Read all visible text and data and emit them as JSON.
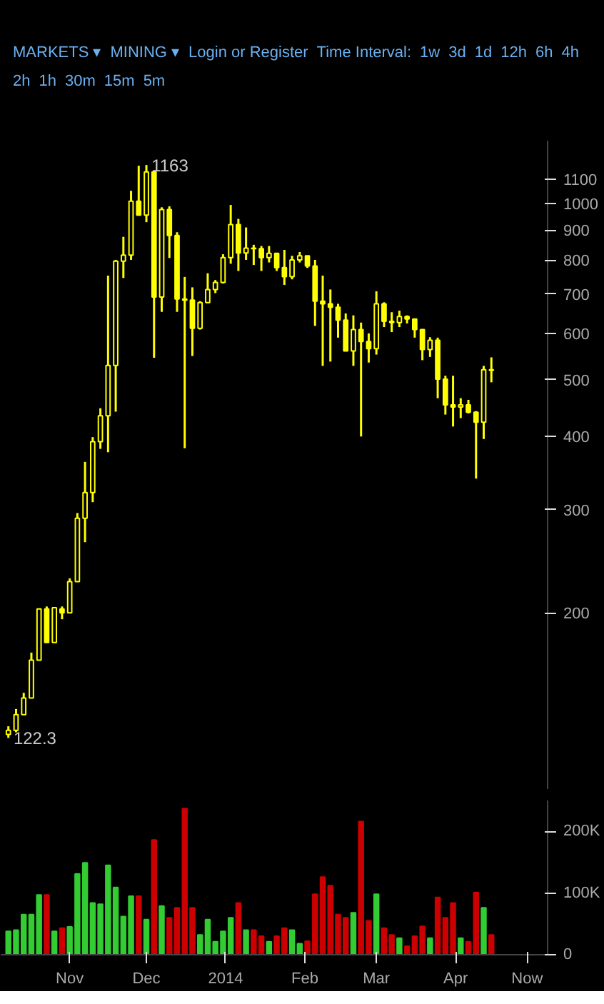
{
  "chart_data": [
    {
      "type": "candlestick",
      "log": true,
      "color": "#ffff00",
      "tick_labels": "y",
      "x": [
        "2013-10-08",
        "2013-10-11",
        "2013-10-14",
        "2013-10-17",
        "2013-10-20",
        "2013-10-23",
        "2013-10-26",
        "2013-10-29",
        "2013-11-01",
        "2013-11-04",
        "2013-11-07",
        "2013-11-10",
        "2013-11-13",
        "2013-11-16",
        "2013-11-19",
        "2013-11-22",
        "2013-11-25",
        "2013-11-28",
        "2013-12-01",
        "2013-12-04",
        "2013-12-07",
        "2013-12-10",
        "2013-12-13",
        "2013-12-16",
        "2013-12-19",
        "2013-12-22",
        "2013-12-25",
        "2013-12-28",
        "2013-12-31",
        "2014-01-03",
        "2014-01-06",
        "2014-01-09",
        "2014-01-12",
        "2014-01-15",
        "2014-01-18",
        "2014-01-21",
        "2014-01-24",
        "2014-01-27",
        "2014-01-30",
        "2014-02-02",
        "2014-02-05",
        "2014-02-08",
        "2014-02-11",
        "2014-02-14",
        "2014-02-17",
        "2014-02-20",
        "2014-02-23",
        "2014-02-26",
        "2014-03-01",
        "2014-03-04",
        "2014-03-07",
        "2014-03-10",
        "2014-03-13",
        "2014-03-16",
        "2014-03-19",
        "2014-03-22",
        "2014-03-25",
        "2014-03-28",
        "2014-03-31",
        "2014-04-03",
        "2014-04-06",
        "2014-04-09",
        "2014-04-12",
        "2014-04-15"
      ],
      "ohlc": [
        [
          124,
          128,
          122.3,
          126
        ],
        [
          126,
          137,
          125,
          134
        ],
        [
          134,
          146,
          134,
          143
        ],
        [
          143,
          171,
          143,
          166
        ],
        [
          166,
          203,
          166,
          203
        ],
        [
          203,
          205,
          178,
          178
        ],
        [
          178,
          204,
          178,
          204
        ],
        [
          203,
          205,
          195,
          200
        ],
        [
          200,
          229,
          200,
          226
        ],
        [
          226,
          296,
          226,
          290
        ],
        [
          290,
          362,
          264,
          321
        ],
        [
          321,
          399,
          309,
          392
        ],
        [
          392,
          447,
          381,
          434
        ],
        [
          434,
          753,
          376,
          529
        ],
        [
          529,
          801,
          441,
          797
        ],
        [
          797,
          877,
          746,
          816
        ],
        [
          816,
          1051,
          801,
          1009
        ],
        [
          1009,
          1160,
          955,
          955
        ],
        [
          955,
          1163,
          929,
          1132
        ],
        [
          1132,
          1136,
          545,
          692
        ],
        [
          692,
          985,
          653,
          976
        ],
        [
          976,
          989,
          807,
          882
        ],
        [
          882,
          893,
          653,
          687
        ],
        [
          687,
          749,
          382,
          684
        ],
        [
          684,
          719,
          549,
          612
        ],
        [
          612,
          681,
          609,
          677
        ],
        [
          677,
          760,
          677,
          713
        ],
        [
          713,
          740,
          703,
          733
        ],
        [
          733,
          819,
          730,
          808
        ],
        [
          808,
          994,
          789,
          920
        ],
        [
          920,
          941,
          767,
          823
        ],
        [
          823,
          910,
          801,
          839
        ],
        [
          839,
          850,
          785,
          837
        ],
        [
          837,
          846,
          767,
          808
        ],
        [
          808,
          846,
          793,
          822
        ],
        [
          822,
          823,
          767,
          777
        ],
        [
          777,
          833,
          726,
          750
        ],
        [
          750,
          814,
          742,
          801
        ],
        [
          801,
          826,
          793,
          814
        ],
        [
          814,
          814,
          776,
          782
        ],
        [
          782,
          801,
          618,
          681
        ],
        [
          681,
          753,
          528,
          674
        ],
        [
          674,
          713,
          537,
          665
        ],
        [
          665,
          674,
          590,
          632
        ],
        [
          632,
          649,
          560,
          560
        ],
        [
          560,
          644,
          528,
          609
        ],
        [
          609,
          626,
          400,
          581
        ],
        [
          581,
          600,
          535,
          565
        ],
        [
          565,
          708,
          552,
          674
        ],
        [
          674,
          678,
          615,
          629
        ],
        [
          629,
          652,
          603,
          626
        ],
        [
          626,
          656,
          615,
          641
        ],
        [
          641,
          644,
          624,
          635
        ],
        [
          635,
          635,
          590,
          609
        ],
        [
          609,
          609,
          540,
          563
        ],
        [
          563,
          591,
          547,
          584
        ],
        [
          584,
          590,
          465,
          501
        ],
        [
          501,
          508,
          436,
          453
        ],
        [
          453,
          508,
          416,
          449
        ],
        [
          449,
          465,
          430,
          453
        ],
        [
          453,
          462,
          438,
          440
        ],
        [
          440,
          442,
          339,
          423
        ],
        [
          423,
          528,
          396,
          520
        ],
        [
          520,
          546,
          495,
          519
        ]
      ],
      "xlim": [
        "2013-10-05",
        "2014-05-07"
      ],
      "ylim": [
        100,
        1280
      ],
      "yticks": [
        200,
        300,
        400,
        500,
        600,
        700,
        800,
        900,
        1000,
        1100
      ],
      "annotations": [
        "MARKETS ▾",
        "MINING ▾",
        "Login or Register",
        "Time Interval:",
        "1w",
        "3d",
        "1d",
        "12h",
        "6h",
        "4h",
        "2h",
        "1h",
        "30m",
        "15m",
        "5m",
        {
          "text": "1163",
          "x": "2013-12-01",
          "y": 1163
        },
        {
          "text": "122.3",
          "x": "2013-10-08",
          "y": 122.3
        }
      ]
    },
    {
      "type": "bar",
      "x": [
        "2013-10-08",
        "2013-10-11",
        "2013-10-14",
        "2013-10-17",
        "2013-10-20",
        "2013-10-23",
        "2013-10-26",
        "2013-10-29",
        "2013-11-01",
        "2013-11-04",
        "2013-11-07",
        "2013-11-10",
        "2013-11-13",
        "2013-11-16",
        "2013-11-19",
        "2013-11-22",
        "2013-11-25",
        "2013-11-28",
        "2013-12-01",
        "2013-12-04",
        "2013-12-07",
        "2013-12-10",
        "2013-12-13",
        "2013-12-16",
        "2013-12-19",
        "2013-12-22",
        "2013-12-25",
        "2013-12-28",
        "2013-12-31",
        "2014-01-03",
        "2014-01-06",
        "2014-01-09",
        "2014-01-12",
        "2014-01-15",
        "2014-01-18",
        "2014-01-21",
        "2014-01-24",
        "2014-01-27",
        "2014-01-30",
        "2014-02-02",
        "2014-02-05",
        "2014-02-08",
        "2014-02-11",
        "2014-02-14",
        "2014-02-17",
        "2014-02-20",
        "2014-02-23",
        "2014-02-26",
        "2014-03-01",
        "2014-03-04",
        "2014-03-07",
        "2014-03-10",
        "2014-03-13",
        "2014-03-16",
        "2014-03-19",
        "2014-03-22",
        "2014-03-25",
        "2014-03-28",
        "2014-03-31",
        "2014-04-03",
        "2014-04-06",
        "2014-04-09",
        "2014-04-12",
        "2014-04-15"
      ],
      "values": [
        38000,
        40000,
        65000,
        65000,
        97000,
        97000,
        38000,
        43000,
        45000,
        131000,
        149000,
        84000,
        82000,
        145000,
        109000,
        62000,
        95000,
        95000,
        57000,
        186000,
        79000,
        60000,
        76000,
        237000,
        76000,
        32000,
        57000,
        21000,
        38000,
        60000,
        84000,
        40000,
        40000,
        30000,
        21000,
        30000,
        43000,
        40000,
        18000,
        22000,
        98000,
        126000,
        112000,
        65000,
        60000,
        68000,
        216000,
        55000,
        98000,
        43000,
        32000,
        27000,
        14000,
        30000,
        46000,
        27000,
        93000,
        60000,
        84000,
        27000,
        21000,
        101000,
        76000,
        32000
      ],
      "colors": [
        "#33cc33",
        "#33cc33",
        "#33cc33",
        "#33cc33",
        "#33cc33",
        "#cc0000",
        "#33cc33",
        "#cc0000",
        "#33cc33",
        "#33cc33",
        "#33cc33",
        "#33cc33",
        "#33cc33",
        "#33cc33",
        "#33cc33",
        "#33cc33",
        "#33cc33",
        "#cc0000",
        "#33cc33",
        "#cc0000",
        "#33cc33",
        "#cc0000",
        "#cc0000",
        "#cc0000",
        "#cc0000",
        "#33cc33",
        "#33cc33",
        "#33cc33",
        "#33cc33",
        "#33cc33",
        "#cc0000",
        "#33cc33",
        "#cc0000",
        "#cc0000",
        "#33cc33",
        "#cc0000",
        "#cc0000",
        "#33cc33",
        "#33cc33",
        "#cc0000",
        "#cc0000",
        "#cc0000",
        "#cc0000",
        "#cc0000",
        "#cc0000",
        "#33cc33",
        "#cc0000",
        "#cc0000",
        "#33cc33",
        "#cc0000",
        "#cc0000",
        "#33cc33",
        "#cc0000",
        "#cc0000",
        "#cc0000",
        "#33cc33",
        "#cc0000",
        "#cc0000",
        "#cc0000",
        "#33cc33",
        "#cc0000",
        "#cc0000",
        "#33cc33",
        "#cc0000"
      ],
      "xlim": [
        "2013-10-05",
        "2014-05-07"
      ],
      "ylim": [
        0,
        250000
      ],
      "xticks": [
        {
          "value": "2013-11-01",
          "label": "Nov"
        },
        {
          "value": "2013-12-01",
          "label": "Dec"
        },
        {
          "value": "2014-01-01",
          "label": "2014"
        },
        {
          "value": "2014-02-01",
          "label": "Feb"
        },
        {
          "value": "2014-03-01",
          "label": "Mar"
        },
        {
          "value": "2014-04-01",
          "label": "Apr"
        },
        {
          "value": "2014-04-29",
          "label": "Now"
        }
      ],
      "yticks": [
        0,
        {
          "value": 100000,
          "label": "100K"
        },
        {
          "value": 200000,
          "label": "200K"
        }
      ]
    }
  ]
}
